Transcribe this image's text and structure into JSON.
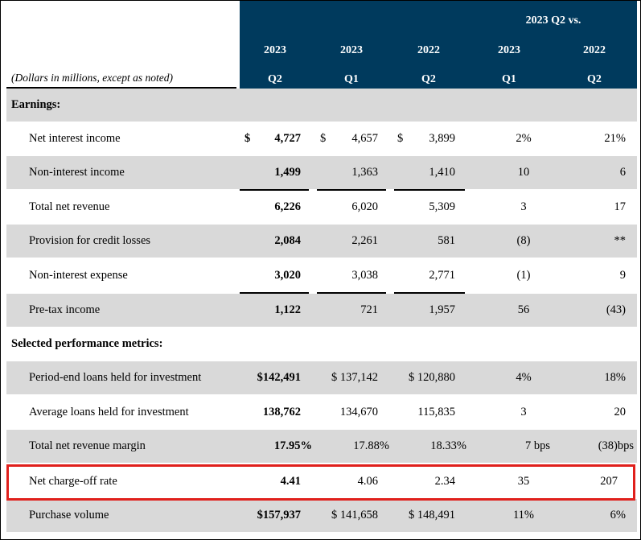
{
  "header": {
    "comparison_label": "2023 Q2 vs.",
    "columns": [
      {
        "year": "2023",
        "quarter": "Q2"
      },
      {
        "year": "2023",
        "quarter": "Q1"
      },
      {
        "year": "2022",
        "quarter": "Q2"
      },
      {
        "year": "2023",
        "quarter": "Q1"
      },
      {
        "year": "2022",
        "quarter": "Q2"
      }
    ],
    "units_note": "(Dollars in millions, except as noted)"
  },
  "sections": {
    "earnings": "Earnings:",
    "metrics": "Selected performance metrics:"
  },
  "rows": {
    "net_interest_income": {
      "label": "Net interest income",
      "q2_2023": "4,727",
      "q1_2023": "4,657",
      "q2_2022": "3,899",
      "vs_q1": "2%",
      "vs_q2": "21%"
    },
    "non_interest_income": {
      "label": "Non-interest income",
      "q2_2023": "1,499",
      "q1_2023": "1,363",
      "q2_2022": "1,410",
      "vs_q1": "10",
      "vs_q2": "6"
    },
    "total_net_revenue": {
      "label": "Total net revenue",
      "q2_2023": "6,226",
      "q1_2023": "6,020",
      "q2_2022": "5,309",
      "vs_q1": "3",
      "vs_q2": "17"
    },
    "provision": {
      "label": "Provision for credit losses",
      "q2_2023": "2,084",
      "q1_2023": "2,261",
      "q2_2022": "581",
      "vs_q1": "(8)",
      "vs_q2": "**"
    },
    "non_interest_expense": {
      "label": "Non-interest expense",
      "q2_2023": "3,020",
      "q1_2023": "3,038",
      "q2_2022": "2,771",
      "vs_q1": "(1)",
      "vs_q2": "9"
    },
    "pretax_income": {
      "label": "Pre-tax income",
      "q2_2023": "1,122",
      "q1_2023": "721",
      "q2_2022": "1,957",
      "vs_q1": "56",
      "vs_q2": "(43)"
    },
    "period_end_loans": {
      "label": "Period-end loans held for investment",
      "q2_2023": "$142,491",
      "q1_2023": "$ 137,142",
      "q2_2022": "$ 120,880",
      "vs_q1": "4%",
      "vs_q2": "18%"
    },
    "average_loans": {
      "label": "Average loans held for investment",
      "q2_2023": "138,762",
      "q1_2023": "134,670",
      "q2_2022": "115,835",
      "vs_q1": "3",
      "vs_q2": "20"
    },
    "net_revenue_margin": {
      "label": "Total net revenue margin",
      "q2_2023": "17.95%",
      "q1_2023": "17.88%",
      "q2_2022": "18.33%",
      "vs_q1": "7 bps",
      "vs_q2": "(38)bps"
    },
    "charge_off_rate": {
      "label": "Net charge-off rate",
      "q2_2023": "4.41",
      "q1_2023": "4.06",
      "q2_2022": "2.34",
      "vs_q1": "35",
      "vs_q2": "207"
    },
    "purchase_volume": {
      "label": "Purchase volume",
      "q2_2023": "$157,937",
      "q1_2023": "$ 141,658",
      "q2_2022": "$ 148,491",
      "vs_q1": "11%",
      "vs_q2": "6%"
    }
  },
  "currency_symbol": "$",
  "colors": {
    "header_band": "#003a5d",
    "row_shade": "#d9d9d9",
    "highlight": "#e0201c"
  }
}
